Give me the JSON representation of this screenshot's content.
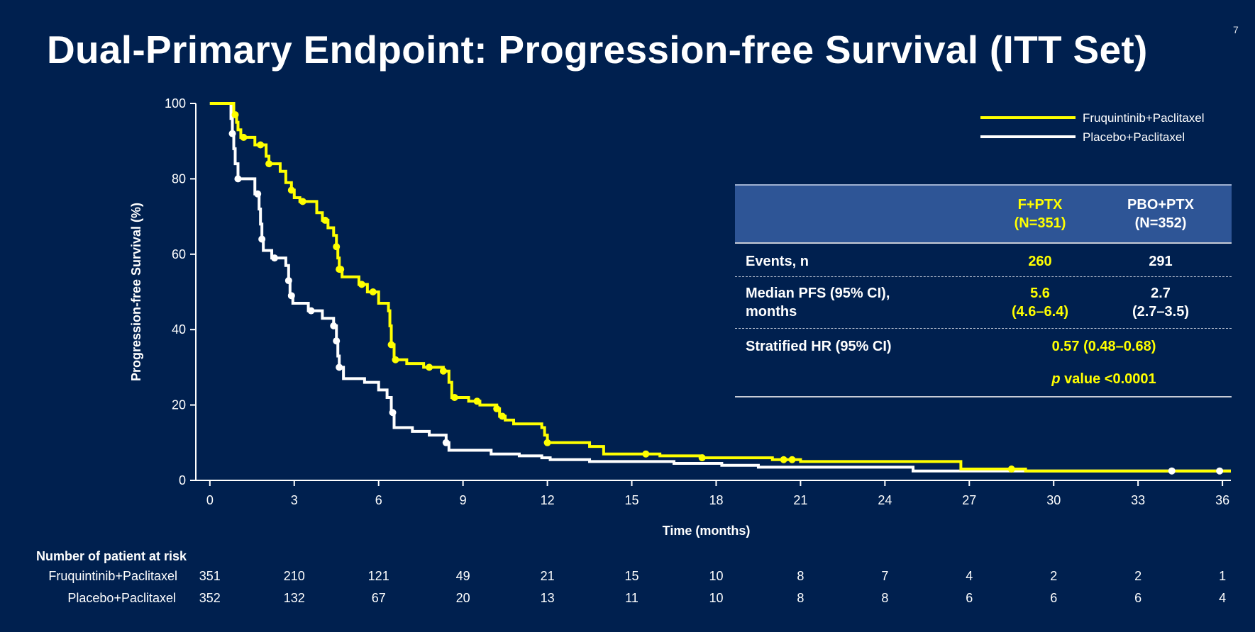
{
  "slide": {
    "title": "Dual-Primary Endpoint: Progression-free Survival (ITT Set)",
    "page_number": "7"
  },
  "colors": {
    "background": "#00204f",
    "fruquintinib": "#ffff00",
    "placebo": "#ffffff",
    "table_header": "#2e5596"
  },
  "chart_data": {
    "type": "line",
    "title": "",
    "xlabel": "Time (months)",
    "ylabel": "Progression-free Survival (%)",
    "xlim": [
      -0.5,
      36.3
    ],
    "ylim": [
      0,
      100
    ],
    "x_ticks": [
      0,
      3,
      6,
      9,
      12,
      15,
      18,
      21,
      24,
      27,
      30,
      33,
      36
    ],
    "y_ticks": [
      0,
      20,
      40,
      60,
      80,
      100
    ],
    "legend_position": "top-right",
    "series": [
      {
        "name": "Fruquintinib+Paclitaxel",
        "color": "#ffff00",
        "steps": [
          [
            0,
            100
          ],
          [
            0.8,
            100
          ],
          [
            0.85,
            97
          ],
          [
            0.95,
            95
          ],
          [
            1.0,
            93
          ],
          [
            1.1,
            91
          ],
          [
            1.6,
            89
          ],
          [
            2.0,
            86
          ],
          [
            2.1,
            84
          ],
          [
            2.5,
            82
          ],
          [
            2.7,
            79
          ],
          [
            2.9,
            77
          ],
          [
            3.0,
            75
          ],
          [
            3.2,
            74
          ],
          [
            3.8,
            71
          ],
          [
            4.0,
            69
          ],
          [
            4.2,
            67
          ],
          [
            4.4,
            65
          ],
          [
            4.5,
            62
          ],
          [
            4.55,
            59
          ],
          [
            4.6,
            56
          ],
          [
            4.7,
            54
          ],
          [
            5.3,
            52
          ],
          [
            5.6,
            50
          ],
          [
            6.0,
            47
          ],
          [
            6.35,
            45
          ],
          [
            6.4,
            41
          ],
          [
            6.45,
            36
          ],
          [
            6.55,
            32
          ],
          [
            7.0,
            31
          ],
          [
            7.6,
            30
          ],
          [
            8.3,
            29
          ],
          [
            8.5,
            26
          ],
          [
            8.6,
            22
          ],
          [
            9.2,
            21
          ],
          [
            9.6,
            20
          ],
          [
            10.2,
            19
          ],
          [
            10.3,
            17
          ],
          [
            10.5,
            16
          ],
          [
            10.8,
            15
          ],
          [
            11.8,
            14
          ],
          [
            11.9,
            12
          ],
          [
            12.0,
            10
          ],
          [
            13.5,
            9
          ],
          [
            14.0,
            7
          ],
          [
            16.0,
            6.5
          ],
          [
            17.5,
            6
          ],
          [
            20.0,
            5.5
          ],
          [
            21.0,
            5
          ],
          [
            26.6,
            5
          ],
          [
            26.7,
            3
          ],
          [
            29.0,
            2.5
          ],
          [
            36.3,
            2.5
          ]
        ]
      },
      {
        "name": "Placebo+Paclitaxel",
        "color": "#ffffff",
        "steps": [
          [
            0,
            100
          ],
          [
            0.7,
            100
          ],
          [
            0.75,
            96
          ],
          [
            0.8,
            92
          ],
          [
            0.85,
            88
          ],
          [
            0.9,
            84
          ],
          [
            1.0,
            80
          ],
          [
            1.6,
            76
          ],
          [
            1.75,
            72
          ],
          [
            1.8,
            68
          ],
          [
            1.85,
            64
          ],
          [
            1.9,
            61
          ],
          [
            2.2,
            59
          ],
          [
            2.7,
            57
          ],
          [
            2.8,
            53
          ],
          [
            2.85,
            49
          ],
          [
            2.95,
            47
          ],
          [
            3.5,
            45
          ],
          [
            4.0,
            43
          ],
          [
            4.4,
            41
          ],
          [
            4.5,
            37
          ],
          [
            4.55,
            33
          ],
          [
            4.6,
            30
          ],
          [
            4.75,
            27
          ],
          [
            5.5,
            26
          ],
          [
            6.0,
            24
          ],
          [
            6.3,
            22
          ],
          [
            6.45,
            18
          ],
          [
            6.55,
            14
          ],
          [
            7.2,
            13
          ],
          [
            7.8,
            12
          ],
          [
            8.4,
            10
          ],
          [
            8.5,
            8
          ],
          [
            10.0,
            7
          ],
          [
            11.0,
            6.5
          ],
          [
            11.8,
            6
          ],
          [
            12.1,
            5.5
          ],
          [
            13.5,
            5
          ],
          [
            16.5,
            4.5
          ],
          [
            18.2,
            4
          ],
          [
            19.5,
            3.5
          ],
          [
            24.9,
            3.5
          ],
          [
            25.0,
            2.5
          ],
          [
            36.3,
            2.5
          ]
        ]
      }
    ],
    "censor_marks": [
      {
        "series": 0,
        "x": [
          0.9,
          1.2,
          1.8,
          2.1,
          2.9,
          3.3,
          4.1,
          4.5,
          4.6,
          4.65,
          5.4,
          5.8,
          6.45,
          6.6,
          7.8,
          8.3,
          8.7,
          9.5,
          10.2,
          10.4,
          12.0,
          15.5,
          17.5,
          20.4,
          20.7,
          28.5
        ]
      },
      {
        "series": 1,
        "x": [
          0.8,
          1.0,
          1.7,
          1.85,
          2.3,
          2.8,
          2.9,
          3.6,
          4.4,
          4.5,
          4.6,
          6.5,
          8.4,
          34.2,
          35.9
        ]
      }
    ]
  },
  "stats_table": {
    "col_headers": [
      [
        "F+PTX",
        "(N=351)"
      ],
      [
        "PBO+PTX",
        "(N=352)"
      ]
    ],
    "rows": [
      {
        "label": [
          "Events, n"
        ],
        "fpx": [
          "260"
        ],
        "pbo": [
          "291"
        ]
      },
      {
        "label": [
          "Median PFS (95%  CI),",
          "months"
        ],
        "fpx": [
          "5.6",
          "(4.6–6.4)"
        ],
        "pbo": [
          "2.7",
          "(2.7–3.5)"
        ]
      }
    ],
    "hr_label": "Stratified HR (95%  CI)",
    "hr_value": "0.57 (0.48–0.68)",
    "p_italic": "p",
    "p_rest": " value <0.0001"
  },
  "at_risk": {
    "title": "Number of patient at risk",
    "rows": [
      {
        "label": "Fruquintinib+Paclitaxel",
        "values": [
          "351",
          "210",
          "121",
          "49",
          "21",
          "15",
          "10",
          "8",
          "7",
          "4",
          "2",
          "2",
          "1"
        ]
      },
      {
        "label": "Placebo+Paclitaxel",
        "values": [
          "352",
          "132",
          "67",
          "20",
          "13",
          "11",
          "10",
          "8",
          "8",
          "6",
          "6",
          "6",
          "4"
        ]
      }
    ]
  }
}
